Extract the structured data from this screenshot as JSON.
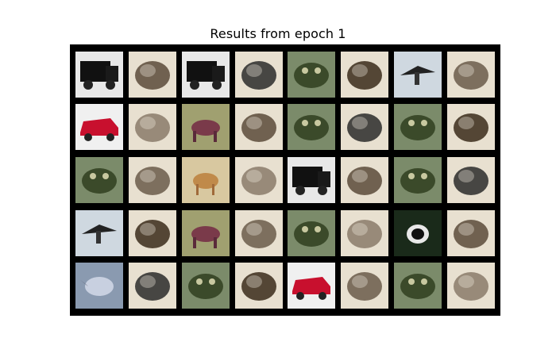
{
  "figure": {
    "title": "Results from epoch 1"
  },
  "grid": {
    "rows": 5,
    "cols": 8,
    "pair_roles": [
      "original",
      "reconstruction"
    ],
    "rows_data": [
      {
        "originals": [
          "truck",
          "truck",
          "frog",
          "airplane"
        ]
      },
      {
        "originals": [
          "car",
          "horse",
          "frog",
          "frog"
        ]
      },
      {
        "originals": [
          "frog",
          "deer",
          "truck",
          "frog"
        ]
      },
      {
        "originals": [
          "airplane",
          "horse",
          "frog",
          "cat"
        ]
      },
      {
        "originals": [
          "bird",
          "frog",
          "car",
          "frog"
        ]
      }
    ]
  },
  "colors": {
    "background": "#ffffff",
    "grid_background": "#000000",
    "title_text": "#000000"
  }
}
